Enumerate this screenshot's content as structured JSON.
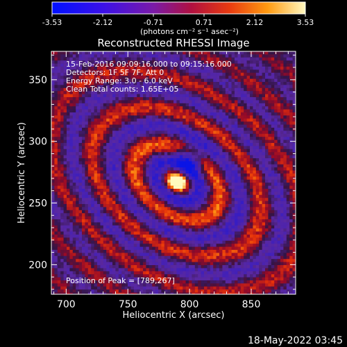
{
  "colorbar": {
    "ticks": [
      "-3.53",
      "-2.12",
      "-0.71",
      "0.71",
      "2.12",
      "3.53"
    ],
    "unit_label": "(photons cm⁻² s⁻¹ asec⁻²)",
    "range": [
      -3.53,
      3.53
    ]
  },
  "chart_data": {
    "type": "heatmap",
    "title": "Reconstructed RHESSI Image",
    "xlabel": "Heliocentric X (arcsec)",
    "ylabel": "Heliocentric Y (arcsec)",
    "xlim": [
      688,
      886
    ],
    "ylim": [
      176,
      373
    ],
    "xticks": [
      700,
      750,
      800,
      850
    ],
    "yticks": [
      200,
      250,
      300,
      350
    ],
    "peak_position": [
      789,
      267
    ],
    "annotations": [
      "15-Feb-2016 09:09:16.000 to 09:15:16.000",
      "Detectors: 1F 5F 7F, Att 0",
      "Energy Range: 3.0 - 6.0 keV",
      "Clean     Total counts: 1.65E+05",
      "Position of Peak = [789,267]"
    ]
  },
  "footer": {
    "timestamp": "18-May-2022 03:45"
  }
}
